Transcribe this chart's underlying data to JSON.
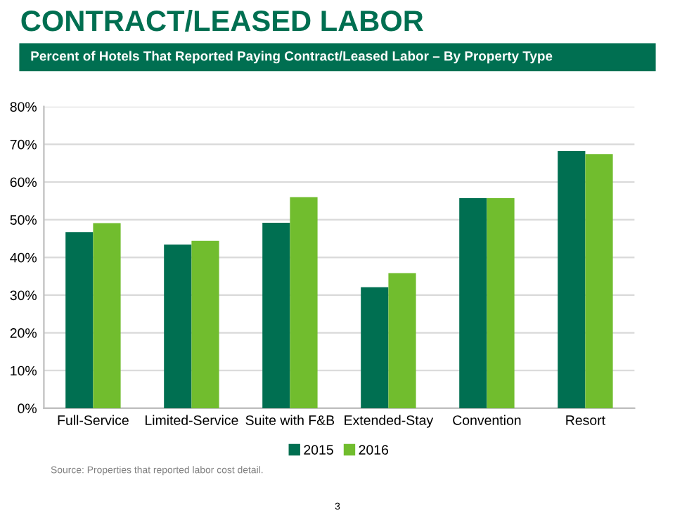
{
  "chart_data": {
    "type": "bar",
    "title": "CONTRACT/LEASED LABOR",
    "subtitle": "Percent of Hotels That Reported Paying Contract/Leased Labor – By Property Type",
    "categories": [
      "Full-Service",
      "Limited-Service",
      "Suite with F&B",
      "Extended-Stay",
      "Convention",
      "Resort"
    ],
    "series": [
      {
        "name": "2015",
        "color": "#006f51",
        "values": [
          46.7,
          43.4,
          49.2,
          32.1,
          55.7,
          68.2
        ]
      },
      {
        "name": "2016",
        "color": "#71bd2e",
        "values": [
          49.1,
          44.4,
          56.0,
          35.8,
          55.7,
          67.4
        ]
      }
    ],
    "ylim": [
      0,
      80
    ],
    "yticks": [
      {
        "value": 0,
        "label": "0%"
      },
      {
        "value": 10,
        "label": "10%"
      },
      {
        "value": 20,
        "label": "20%"
      },
      {
        "value": 30,
        "label": "30%"
      },
      {
        "value": 40,
        "label": "40%"
      },
      {
        "value": 50,
        "label": "50%"
      },
      {
        "value": 60,
        "label": "60%"
      },
      {
        "value": 70,
        "label": "70%"
      },
      {
        "value": 80,
        "label": "80%"
      }
    ],
    "grid": "y",
    "legend": "bottom",
    "annotations": [
      "Source: Properties that reported labor cost detail.",
      "3"
    ]
  }
}
